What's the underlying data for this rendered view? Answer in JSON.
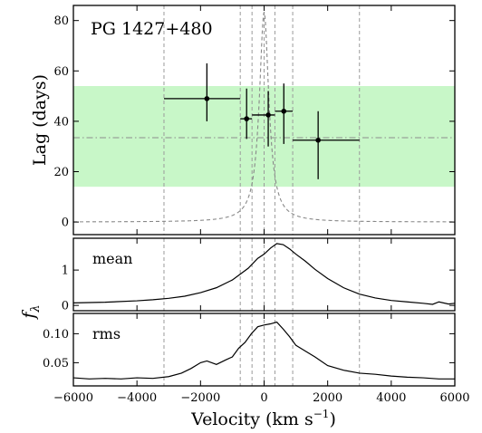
{
  "chart_data": {
    "type": "scatter",
    "object_name": "PG 1427+480",
    "xlabel": "Velocity (km s",
    "xlabel_sup": "−1",
    "xlabel_close": ")",
    "xlim": [
      -6000,
      6000
    ],
    "x_ticks": [
      -6000,
      -4000,
      -2000,
      0,
      2000,
      4000,
      6000
    ],
    "x_tick_labels": [
      "−6000",
      "−4000",
      "−2000",
      "0",
      "2000",
      "4000",
      "6000"
    ],
    "vertical_lines": [
      -3150,
      -750,
      -380,
      0,
      340,
      900,
      3000
    ],
    "lag_panel": {
      "ylabel": "Lag (days)",
      "ylim": [
        -5,
        86
      ],
      "y_ticks": [
        0,
        20,
        40,
        60,
        80
      ],
      "y_tick_labels": [
        "0",
        "20",
        "40",
        "60",
        "80"
      ],
      "mean_lag": 33.5,
      "band": [
        14,
        54
      ],
      "band_color": "#c8f7c8",
      "points": [
        {
          "x": -1800,
          "x_lo": -3150,
          "x_hi": -750,
          "y": 49,
          "y_lo": 40,
          "y_hi": 63
        },
        {
          "x": -550,
          "x_lo": -750,
          "x_hi": -380,
          "y": 41,
          "y_lo": 33,
          "y_hi": 53
        },
        {
          "x": 130,
          "x_lo": -380,
          "x_hi": 340,
          "y": 42.5,
          "y_lo": 30,
          "y_hi": 52
        },
        {
          "x": 620,
          "x_lo": 340,
          "x_hi": 900,
          "y": 44,
          "y_lo": 31,
          "y_hi": 55
        },
        {
          "x": 1700,
          "x_lo": 900,
          "x_hi": 3000,
          "y": 32.5,
          "y_lo": 17,
          "y_hi": 44
        }
      ],
      "curve_label": "",
      "curve_A": 2.7,
      "curve_v0": 180
    },
    "shared_ylabel": "f",
    "shared_ylabel_sub": "λ",
    "mean_panel": {
      "label": "mean",
      "ylim": [
        -0.15,
        1.9
      ],
      "y_ticks": [
        0,
        1
      ],
      "y_tick_labels": [
        "0",
        "1"
      ],
      "x": [
        -6000,
        -5000,
        -4000,
        -3500,
        -3000,
        -2500,
        -2000,
        -1500,
        -1000,
        -500,
        -200,
        0,
        200,
        400,
        600,
        800,
        1000,
        1300,
        1600,
        2000,
        2500,
        3000,
        3500,
        4000,
        4500,
        5000,
        5300,
        5500,
        5800,
        6000
      ],
      "values": [
        0.07,
        0.09,
        0.13,
        0.16,
        0.2,
        0.26,
        0.36,
        0.5,
        0.72,
        1.05,
        1.33,
        1.45,
        1.62,
        1.75,
        1.72,
        1.6,
        1.45,
        1.25,
        1.02,
        0.76,
        0.5,
        0.32,
        0.21,
        0.14,
        0.1,
        0.06,
        0.03,
        0.1,
        0.04,
        0.06
      ]
    },
    "rms_panel": {
      "label": "rms",
      "ylim": [
        0.01,
        0.135
      ],
      "y_ticks": [
        0.05,
        0.1
      ],
      "y_tick_labels": [
        "0.05",
        "0.10"
      ],
      "x": [
        -6000,
        -5500,
        -5000,
        -4500,
        -4000,
        -3500,
        -3000,
        -2600,
        -2300,
        -2000,
        -1800,
        -1500,
        -1200,
        -1000,
        -800,
        -600,
        -400,
        -200,
        0,
        200,
        400,
        600,
        800,
        1000,
        1300,
        1600,
        2000,
        2500,
        3000,
        3500,
        4000,
        4500,
        5000,
        5500,
        6000
      ],
      "values": [
        0.024,
        0.022,
        0.023,
        0.022,
        0.024,
        0.023,
        0.026,
        0.032,
        0.04,
        0.05,
        0.053,
        0.047,
        0.055,
        0.06,
        0.075,
        0.085,
        0.1,
        0.112,
        0.115,
        0.117,
        0.12,
        0.108,
        0.095,
        0.08,
        0.07,
        0.06,
        0.045,
        0.037,
        0.032,
        0.03,
        0.027,
        0.025,
        0.024,
        0.022,
        0.022
      ]
    }
  }
}
